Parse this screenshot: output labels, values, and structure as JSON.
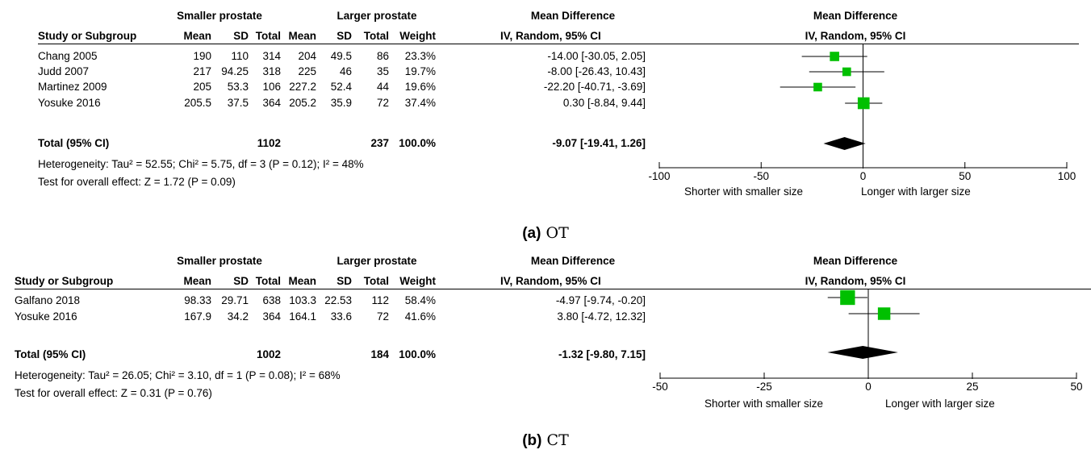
{
  "colors": {
    "square": "#00c000",
    "diamond": "#000000",
    "line": "#000000"
  },
  "panels": [
    {
      "header": {
        "group1": "Smaller prostate",
        "group2": "Larger prostate",
        "md_title": "Mean Difference",
        "md_sub": "IV, Random, 95% CI",
        "plot_title": "Mean Difference",
        "plot_sub": "IV, Random, 95% CI",
        "cols": [
          "Study or Subgroup",
          "Mean",
          "SD",
          "Total",
          "Mean",
          "SD",
          "Total",
          "Weight"
        ]
      },
      "studies": [
        {
          "name": "Chang 2005",
          "m1": "190",
          "sd1": "110",
          "n1": "314",
          "m2": "204",
          "sd2": "49.5",
          "n2": "86",
          "weight": "23.3%",
          "ci": "-14.00 [-30.05, 2.05]"
        },
        {
          "name": "Judd 2007",
          "m1": "217",
          "sd1": "94.25",
          "n1": "318",
          "m2": "225",
          "sd2": "46",
          "n2": "35",
          "weight": "19.7%",
          "ci": "-8.00 [-26.43, 10.43]"
        },
        {
          "name": "Martinez 2009",
          "m1": "205",
          "sd1": "53.3",
          "n1": "106",
          "m2": "227.2",
          "sd2": "52.4",
          "n2": "44",
          "weight": "19.6%",
          "ci": "-22.20 [-40.71, -3.69]"
        },
        {
          "name": "Yosuke 2016",
          "m1": "205.5",
          "sd1": "37.5",
          "n1": "364",
          "m2": "205.2",
          "sd2": "35.9",
          "n2": "72",
          "weight": "37.4%",
          "ci": "0.30 [-8.84, 9.44]"
        }
      ],
      "total": {
        "label": "Total (95% CI)",
        "n1": "1102",
        "n2": "237",
        "weight": "100.0%",
        "ci": "-9.07 [-19.41, 1.26]"
      },
      "heterogeneity": "Heterogeneity: Tau² = 52.55; Chi² = 5.75, df = 3 (P = 0.12); I² = 48%",
      "overall": "Test for overall effect: Z = 1.72 (P = 0.09)",
      "axis_left_label": "Shorter with smaller size",
      "axis_right_label": "Longer with larger size",
      "caption_tag": "(a)",
      "caption_text": "OT"
    },
    {
      "header": {
        "group1": "Smaller prostate",
        "group2": "Larger prostate",
        "md_title": "Mean Difference",
        "md_sub": "IV, Random, 95% CI",
        "plot_title": "Mean Difference",
        "plot_sub": "IV, Random, 95% CI",
        "cols": [
          "Study or Subgroup",
          "Mean",
          "SD",
          "Total",
          "Mean",
          "SD",
          "Total",
          "Weight"
        ]
      },
      "studies": [
        {
          "name": "Galfano 2018",
          "m1": "98.33",
          "sd1": "29.71",
          "n1": "638",
          "m2": "103.3",
          "sd2": "22.53",
          "n2": "112",
          "weight": "58.4%",
          "ci": "-4.97 [-9.74, -0.20]"
        },
        {
          "name": "Yosuke 2016",
          "m1": "167.9",
          "sd1": "34.2",
          "n1": "364",
          "m2": "164.1",
          "sd2": "33.6",
          "n2": "72",
          "weight": "41.6%",
          "ci": "3.80 [-4.72, 12.32]"
        }
      ],
      "total": {
        "label": "Total (95% CI)",
        "n1": "1002",
        "n2": "184",
        "weight": "100.0%",
        "ci": "-1.32 [-9.80, 7.15]"
      },
      "heterogeneity": "Heterogeneity: Tau² = 26.05; Chi² = 3.10, df = 1 (P = 0.08); I² = 68%",
      "overall": "Test for overall effect: Z = 0.31 (P = 0.76)",
      "axis_left_label": "Shorter with smaller size",
      "axis_right_label": "Longer with larger size",
      "caption_tag": "(b)",
      "caption_text": "CT"
    }
  ],
  "chart_data": [
    {
      "type": "forest",
      "xlim": [
        -100,
        100
      ],
      "ticks": [
        -100,
        -50,
        0,
        50,
        100
      ],
      "tick_labels": [
        "-100",
        "-50",
        "0",
        "50",
        "100"
      ],
      "studies": [
        {
          "name": "Chang 2005",
          "md": -14.0,
          "lo": -30.05,
          "hi": 2.05,
          "weight": 23.3
        },
        {
          "name": "Judd 2007",
          "md": -8.0,
          "lo": -26.43,
          "hi": 10.43,
          "weight": 19.7
        },
        {
          "name": "Martinez 2009",
          "md": -22.2,
          "lo": -40.71,
          "hi": -3.69,
          "weight": 19.6
        },
        {
          "name": "Yosuke 2016",
          "md": 0.3,
          "lo": -8.84,
          "hi": 9.44,
          "weight": 37.4
        }
      ],
      "total": {
        "md": -9.07,
        "lo": -19.41,
        "hi": 1.26
      }
    },
    {
      "type": "forest",
      "xlim": [
        -50,
        50
      ],
      "ticks": [
        -50,
        -25,
        0,
        25,
        50
      ],
      "tick_labels": [
        "-50",
        "-25",
        "0",
        "25",
        "50"
      ],
      "studies": [
        {
          "name": "Galfano 2018",
          "md": -4.97,
          "lo": -9.74,
          "hi": -0.2,
          "weight": 58.4
        },
        {
          "name": "Yosuke 2016",
          "md": 3.8,
          "lo": -4.72,
          "hi": 12.32,
          "weight": 41.6
        }
      ],
      "total": {
        "md": -1.32,
        "lo": -9.8,
        "hi": 7.15
      }
    }
  ]
}
